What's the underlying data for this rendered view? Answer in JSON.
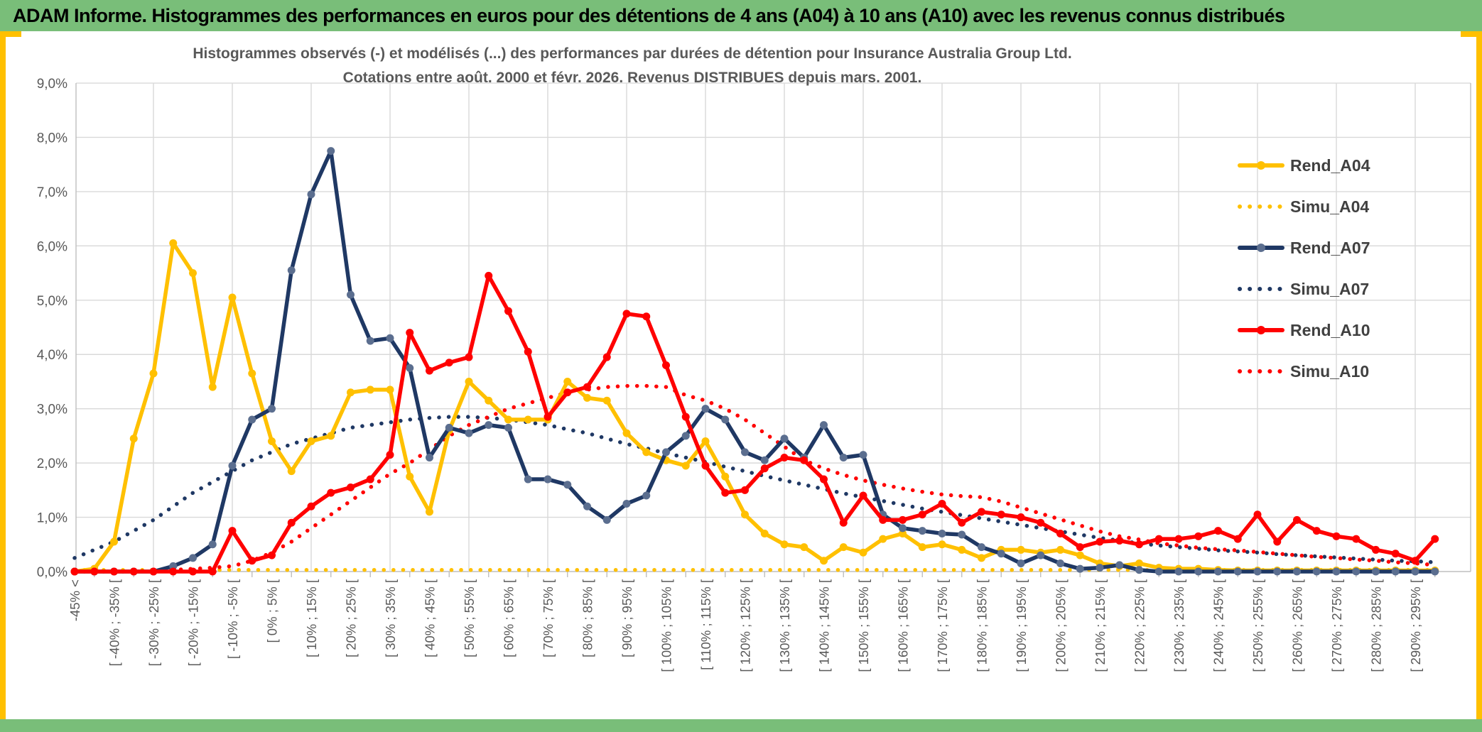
{
  "banner": {
    "title": "ADAM Informe. Histogrammes des performances en euros pour des détentions de 4 ans (A04) à 10 ans (A10) avec les revenus connus distribués"
  },
  "chart": {
    "title_line1": "Histogrammes observés (-) et modélisés (...) des performances par durées de détention pour Insurance Australia Group Ltd.",
    "title_line2": "Cotations entre août. 2000 et févr. 2026. Revenus DISTRIBUES depuis mars. 2001.",
    "colors": {
      "banner_green": "#79BE79",
      "accent_gold": "#FFC000",
      "gridline": "#D9D9D9",
      "axis_line": "#BFBFBF",
      "axis_text": "#595959",
      "legend_text": "#404040",
      "navy": "#1F3864",
      "navy_marker": "#5B6E8F",
      "red": "#FF0000",
      "gold": "#FFC000"
    }
  },
  "chart_data": {
    "type": "line",
    "title": "Histogrammes observés (-) et modélisés (...) des performances par durées de détention pour Insurance Australia Group Ltd.",
    "subtitle": "Cotations entre août. 2000 et févr. 2026. Revenus DISTRIBUES depuis mars. 2001.",
    "ylim": [
      0,
      9
    ],
    "grid": true,
    "legend_position": "right",
    "x_label_every": 2,
    "y_ticks": [
      "0,0%",
      "1,0%",
      "2,0%",
      "3,0%",
      "4,0%",
      "5,0%",
      "6,0%",
      "7,0%",
      "8,0%",
      "9,0%"
    ],
    "categories": [
      "-45% <",
      "",
      "[ -40% ; -35% [",
      "",
      "[ -30% ; -25% [",
      "",
      "[ -20% ; -15% [",
      "",
      "[ -10% ; -5% [",
      "",
      "[ 0% ; 5% [",
      "",
      "[ 10% ; 15% [",
      "",
      "[ 20% ; 25% [",
      "",
      "[ 30% ; 35% [",
      "",
      "[ 40% ; 45% [",
      "",
      "[ 50% ; 55% [",
      "",
      "[ 60% ; 65% [",
      "",
      "[ 70% ; 75% [",
      "",
      "[ 80% ; 85% [",
      "",
      "[ 90% ; 95% [",
      "",
      "[ 100% ; 105% [",
      "",
      "[ 110% ; 115% [",
      "",
      "[ 120% ; 125% [",
      "",
      "[ 130% ; 135% [",
      "",
      "[ 140% ; 145% [",
      "",
      "[ 150% ; 155% [",
      "",
      "[ 160% ; 165% [",
      "",
      "[ 170% ; 175% [",
      "",
      "[ 180% ; 185% [",
      "",
      "[ 190% ; 195% [",
      "",
      "[ 200% ; 205% [",
      "",
      "[ 210% ; 215% [",
      "",
      "[ 220% ; 225% [",
      "",
      "[ 230% ; 235% [",
      "",
      "[ 240% ; 245% [",
      "",
      "[ 250% ; 255% [",
      "",
      "[ 260% ; 265% [",
      "",
      "[ 270% ; 275% [",
      "",
      "[ 280% ; 285% [",
      "",
      "[ 290% ; 295% [",
      ""
    ],
    "series": [
      {
        "name": "Rend_A04",
        "color": "#FFC000",
        "marker_color": "#FFC000",
        "style": "solid",
        "marker": true,
        "values": [
          0,
          0.05,
          0.55,
          2.45,
          3.65,
          6.05,
          5.5,
          3.4,
          5.05,
          3.65,
          2.4,
          1.85,
          2.4,
          2.5,
          3.3,
          3.35,
          3.35,
          1.75,
          1.1,
          2.6,
          3.5,
          3.15,
          2.8,
          2.8,
          2.8,
          3.5,
          3.2,
          3.15,
          2.55,
          2.2,
          2.05,
          1.95,
          2.4,
          1.75,
          1.05,
          0.7,
          0.5,
          0.45,
          0.2,
          0.45,
          0.35,
          0.6,
          0.7,
          0.45,
          0.5,
          0.4,
          0.25,
          0.4,
          0.4,
          0.35,
          0.4,
          0.3,
          0.15,
          0.1,
          0.15,
          0.07,
          0.05,
          0.05,
          0.03,
          0.02,
          0.02,
          0.02,
          0.02,
          0.02,
          0.02,
          0.02,
          0.02,
          0.02,
          0.02,
          0.02
        ]
      },
      {
        "name": "Simu_A04",
        "color": "#FFC000",
        "style": "dotted",
        "marker": false,
        "values": [
          0.03,
          0.03,
          0.03,
          0.03,
          0.03,
          0.03,
          0.03,
          0.03,
          0.03,
          0.03,
          0.03,
          0.03,
          0.03,
          0.03,
          0.03,
          0.03,
          0.03,
          0.03,
          0.03,
          0.03,
          0.03,
          0.03,
          0.03,
          0.03,
          0.03,
          0.03,
          0.03,
          0.03,
          0.03,
          0.03,
          0.03,
          0.03,
          0.03,
          0.03,
          0.03,
          0.03,
          0.03,
          0.03,
          0.03,
          0.03,
          0.03,
          0.03,
          0.03,
          0.03,
          0.03,
          0.03,
          0.03,
          0.03,
          0.03,
          0.03,
          0.03,
          0.03,
          0.03,
          0.03,
          0.03,
          0.03,
          0.03,
          0.03,
          0.03,
          0.03,
          0.03,
          0.03,
          0.03,
          0.03,
          0.03,
          0.03,
          0.03,
          0.03,
          0.03,
          0.03
        ]
      },
      {
        "name": "Rend_A07",
        "color": "#1F3864",
        "marker_color": "#5B6E8F",
        "style": "solid",
        "marker": true,
        "values": [
          0,
          0,
          0,
          0,
          0,
          0.1,
          0.25,
          0.5,
          1.95,
          2.8,
          3.0,
          5.55,
          6.95,
          7.75,
          5.1,
          4.25,
          4.3,
          3.75,
          2.1,
          2.65,
          2.55,
          2.7,
          2.65,
          1.7,
          1.7,
          1.6,
          1.2,
          0.95,
          1.25,
          1.4,
          2.2,
          2.5,
          3.0,
          2.8,
          2.2,
          2.05,
          2.45,
          2.1,
          2.7,
          2.1,
          2.15,
          1.05,
          0.8,
          0.75,
          0.7,
          0.68,
          0.45,
          0.33,
          0.15,
          0.3,
          0.15,
          0.05,
          0.07,
          0.12,
          0.03,
          0,
          0,
          0,
          0,
          0,
          0,
          0,
          0,
          0,
          0,
          0,
          0,
          0,
          0,
          0
        ]
      },
      {
        "name": "Simu_A07",
        "color": "#1F3864",
        "style": "dotted",
        "marker": false,
        "values": [
          0.25,
          0.4,
          0.55,
          0.75,
          0.95,
          1.2,
          1.45,
          1.65,
          1.85,
          2.05,
          2.2,
          2.35,
          2.45,
          2.55,
          2.65,
          2.7,
          2.75,
          2.8,
          2.83,
          2.85,
          2.85,
          2.83,
          2.8,
          2.75,
          2.7,
          2.62,
          2.55,
          2.45,
          2.35,
          2.27,
          2.18,
          2.1,
          2.02,
          1.93,
          1.85,
          1.76,
          1.68,
          1.6,
          1.52,
          1.44,
          1.37,
          1.3,
          1.23,
          1.16,
          1.1,
          1.04,
          0.98,
          0.92,
          0.86,
          0.8,
          0.74,
          0.68,
          0.62,
          0.57,
          0.52,
          0.48,
          0.45,
          0.42,
          0.39,
          0.37,
          0.35,
          0.32,
          0.3,
          0.28,
          0.26,
          0.24,
          0.22,
          0.2,
          0.19,
          0.17
        ]
      },
      {
        "name": "Rend_A10",
        "color": "#FF0000",
        "marker_color": "#FF0000",
        "style": "solid",
        "marker": true,
        "values": [
          0,
          0,
          0,
          0,
          0,
          0,
          0,
          0,
          0.75,
          0.2,
          0.3,
          0.9,
          1.2,
          1.45,
          1.55,
          1.7,
          2.15,
          4.4,
          3.7,
          3.85,
          3.95,
          5.45,
          4.8,
          4.05,
          2.85,
          3.3,
          3.4,
          3.95,
          4.75,
          4.7,
          3.8,
          2.85,
          1.95,
          1.45,
          1.5,
          1.9,
          2.1,
          2.05,
          1.7,
          0.9,
          1.4,
          0.95,
          0.95,
          1.05,
          1.25,
          0.9,
          1.1,
          1.05,
          1.0,
          0.9,
          0.7,
          0.45,
          0.55,
          0.57,
          0.5,
          0.6,
          0.6,
          0.65,
          0.75,
          0.6,
          1.05,
          0.55,
          0.95,
          0.75,
          0.65,
          0.6,
          0.4,
          0.33,
          0.2,
          0.6
        ]
      },
      {
        "name": "Simu_A10",
        "color": "#FF0000",
        "style": "dotted",
        "marker": false,
        "values": [
          0,
          0,
          0,
          0,
          0.02,
          0.03,
          0.05,
          0.07,
          0.1,
          0.2,
          0.35,
          0.55,
          0.8,
          1.05,
          1.3,
          1.55,
          1.8,
          2.0,
          2.25,
          2.5,
          2.7,
          2.85,
          3.0,
          3.1,
          3.2,
          3.3,
          3.35,
          3.4,
          3.42,
          3.42,
          3.4,
          3.25,
          3.15,
          3.0,
          2.8,
          2.55,
          2.3,
          2.05,
          1.9,
          1.78,
          1.68,
          1.6,
          1.53,
          1.47,
          1.42,
          1.39,
          1.37,
          1.29,
          1.18,
          1.07,
          0.96,
          0.85,
          0.74,
          0.65,
          0.59,
          0.52,
          0.48,
          0.44,
          0.41,
          0.39,
          0.36,
          0.33,
          0.3,
          0.27,
          0.25,
          0.22,
          0.2,
          0.17,
          0.15,
          0.12
        ]
      }
    ]
  }
}
